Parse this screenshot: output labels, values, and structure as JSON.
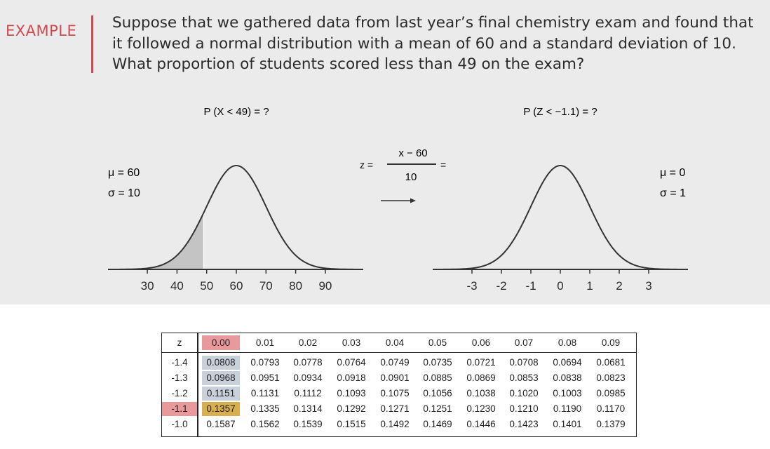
{
  "example_label": "EXAMPLE",
  "question_lines": [
    "Suppose that we gathered data from last year’s final chemistry exam and found that",
    "it followed a normal distribution with a mean of 60 and a standard deviation of 10.",
    "What proportion of students scored less than 49 on the exam?"
  ],
  "left_curve": {
    "prob_label": "P (X < 49) = ?",
    "mu_label": "μ = 60",
    "sigma_label": "σ = 10",
    "mean": 60,
    "sd": 10,
    "shade_below": 49,
    "ticks": [
      "30",
      "40",
      "50",
      "60",
      "70",
      "80",
      "90"
    ]
  },
  "transform": {
    "z_eq": "z =",
    "numerator": "x − 60",
    "denominator": "10",
    "equals": "="
  },
  "right_curve": {
    "prob_label": "P (Z < −1.1) = ?",
    "mu_label": "μ = 0",
    "sigma_label": "σ = 1",
    "mean": 0,
    "sd": 1,
    "ticks": [
      "-3",
      "-2",
      "-1",
      "0",
      "1",
      "2",
      "3"
    ]
  },
  "colors": {
    "accent_red": "#d04a4f",
    "shade": "#c4c4c4",
    "highlight_red": "#e8999c",
    "highlight_blue": "#c8d1da",
    "highlight_gold": "#d9ae4f"
  },
  "z_table": {
    "columns": [
      "z",
      "0.00",
      "0.01",
      "0.02",
      "0.03",
      "0.04",
      "0.05",
      "0.06",
      "0.07",
      "0.08",
      "0.09"
    ],
    "rows": [
      [
        "-1.4",
        "0.0808",
        "0.0793",
        "0.0778",
        "0.0764",
        "0.0749",
        "0.0735",
        "0.0721",
        "0.0708",
        "0.0694",
        "0.0681"
      ],
      [
        "-1.3",
        "0.0968",
        "0.0951",
        "0.0934",
        "0.0918",
        "0.0901",
        "0.0885",
        "0.0869",
        "0.0853",
        "0.0838",
        "0.0823"
      ],
      [
        "-1.2",
        "0.1151",
        "0.1131",
        "0.1112",
        "0.1093",
        "0.1075",
        "0.1056",
        "0.1038",
        "0.1020",
        "0.1003",
        "0.0985"
      ],
      [
        "-1.1",
        "0.1357",
        "0.1335",
        "0.1314",
        "0.1292",
        "0.1271",
        "0.1251",
        "0.1230",
        "0.1210",
        "0.1190",
        "0.1170"
      ],
      [
        "-1.0",
        "0.1587",
        "0.1562",
        "0.1539",
        "0.1515",
        "0.1492",
        "0.1469",
        "0.1446",
        "0.1423",
        "0.1401",
        "0.1379"
      ]
    ],
    "highlight_row": "-1.1",
    "highlight_col": "0.00"
  }
}
